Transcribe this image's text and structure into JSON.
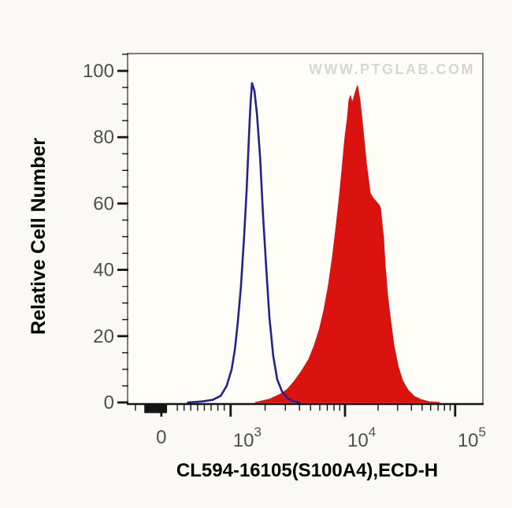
{
  "watermark": "WWW.PTGLAB.COM",
  "chart_data": {
    "type": "area",
    "subtype": "flow-cytometry-histogram-overlay",
    "title": "",
    "xlabel": "CL594-16105(S100A4),ECD-H",
    "ylabel": "Relative Cell Number",
    "legend": "none",
    "grid": false,
    "x_axis": {
      "scale": "biexponential (linear near 0, log10 above)",
      "ticks": [
        {
          "label": "0",
          "exp": "",
          "pos": 0.095
        },
        {
          "label": "10",
          "exp": "3",
          "pos": 0.29
        },
        {
          "label": "10",
          "exp": "4",
          "pos": 0.612
        },
        {
          "label": "10",
          "exp": "5",
          "pos": 0.922
        }
      ],
      "minor_tick_pos": [
        0.022,
        0.14,
        0.159,
        0.178,
        0.197,
        0.216,
        0.235,
        0.254,
        0.272,
        0.387,
        0.444,
        0.484,
        0.515,
        0.541,
        0.562,
        0.581,
        0.597,
        0.705,
        0.76,
        0.799,
        0.829,
        0.853,
        0.874,
        0.892,
        0.908
      ],
      "tick_cluster_band": {
        "from": 0.047,
        "to": 0.111
      }
    },
    "y_axis": {
      "ticks": [
        0,
        20,
        40,
        60,
        80,
        100
      ],
      "minor_step": 5,
      "minor_max": 105,
      "ylim": [
        0,
        105.5
      ]
    },
    "series": [
      {
        "name": "red-filled-sample",
        "style": "filled",
        "color": "#db1310",
        "points": [
          [
            0.36,
            0
          ],
          [
            0.4,
            1
          ],
          [
            0.43,
            2.5
          ],
          [
            0.45,
            4
          ],
          [
            0.47,
            6.5
          ],
          [
            0.49,
            9.5
          ],
          [
            0.51,
            13
          ],
          [
            0.525,
            17
          ],
          [
            0.54,
            22
          ],
          [
            0.553,
            28
          ],
          [
            0.565,
            35
          ],
          [
            0.577,
            44
          ],
          [
            0.588,
            54
          ],
          [
            0.598,
            64
          ],
          [
            0.605,
            72
          ],
          [
            0.612,
            80
          ],
          [
            0.619,
            86
          ],
          [
            0.623,
            91
          ],
          [
            0.627,
            92.5
          ],
          [
            0.632,
            90.5
          ],
          [
            0.636,
            91.5
          ],
          [
            0.641,
            93.5
          ],
          [
            0.647,
            95.5
          ],
          [
            0.654,
            91
          ],
          [
            0.661,
            84
          ],
          [
            0.672,
            72
          ],
          [
            0.683,
            63
          ],
          [
            0.692,
            61.5
          ],
          [
            0.7,
            60.5
          ],
          [
            0.708,
            59.5
          ],
          [
            0.712,
            58.5
          ],
          [
            0.716,
            54
          ],
          [
            0.72,
            50
          ],
          [
            0.725,
            41
          ],
          [
            0.732,
            32
          ],
          [
            0.741,
            24
          ],
          [
            0.749,
            17.5
          ],
          [
            0.761,
            11
          ],
          [
            0.774,
            6.5
          ],
          [
            0.789,
            3.8
          ],
          [
            0.807,
            1.8
          ],
          [
            0.827,
            0.8
          ],
          [
            0.849,
            0.2
          ],
          [
            0.878,
            0
          ]
        ]
      },
      {
        "name": "blue-outline-control",
        "style": "outline",
        "color": "#23238f",
        "points": [
          [
            0.17,
            0
          ],
          [
            0.21,
            0.3
          ],
          [
            0.24,
            0.8
          ],
          [
            0.262,
            2
          ],
          [
            0.279,
            5
          ],
          [
            0.293,
            10
          ],
          [
            0.302,
            16
          ],
          [
            0.31,
            24
          ],
          [
            0.319,
            35
          ],
          [
            0.328,
            50
          ],
          [
            0.335,
            64
          ],
          [
            0.342,
            81
          ],
          [
            0.346,
            90
          ],
          [
            0.35,
            96.3
          ],
          [
            0.357,
            94
          ],
          [
            0.364,
            87
          ],
          [
            0.373,
            74
          ],
          [
            0.381,
            57
          ],
          [
            0.39,
            41
          ],
          [
            0.399,
            26
          ],
          [
            0.41,
            14
          ],
          [
            0.421,
            7
          ],
          [
            0.435,
            3.2
          ],
          [
            0.45,
            1.3
          ],
          [
            0.466,
            0.4
          ],
          [
            0.483,
            0
          ]
        ]
      }
    ],
    "colors": {
      "plot_bg": "#fefdf8",
      "page_bg": "#faf9f5",
      "border": "#7d7d7d",
      "axis_line": "#151515",
      "tick": "#151515",
      "tick_label": "#4e4e4e",
      "axis_title": "#000000",
      "watermark": "#d6d6d6"
    }
  }
}
